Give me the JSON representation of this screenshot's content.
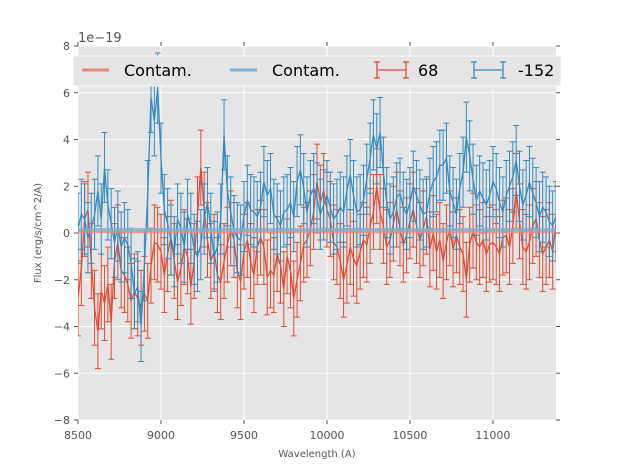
{
  "chart_data": {
    "type": "line",
    "title": "",
    "xlabel": "Wavelength (A)",
    "ylabel": "Flux (erg/s/cm^2/A)",
    "offset_text": "1e−19",
    "xlim": [
      8500,
      11380
    ],
    "ylim": [
      -8,
      8
    ],
    "y_scale_factor": 1e-19,
    "grid": true,
    "x_ticks": [
      8500,
      9000,
      9500,
      10000,
      10500,
      11000
    ],
    "x_tick_labels": [
      "8500",
      "9000",
      "9500",
      "10000",
      "10500",
      "11000"
    ],
    "y_ticks": [
      -8,
      -6,
      -4,
      -2,
      0,
      2,
      4,
      6,
      8
    ],
    "y_tick_labels": [
      "−8",
      "−6",
      "−4",
      "−2",
      "0",
      "2",
      "4",
      "6",
      "8"
    ],
    "legend": {
      "placement": "top (spanning, 4 columns)",
      "entries": [
        {
          "label": "Contam.",
          "type": "line",
          "color": "#E8877A"
        },
        {
          "label": "Contam.",
          "type": "line",
          "color": "#7BAFD4"
        },
        {
          "label": "68",
          "type": "errorbar",
          "color": "#E24A33"
        },
        {
          "label": "-152",
          "type": "errorbar",
          "color": "#348ABD"
        }
      ]
    },
    "x_start": 8500,
    "x_step": 20,
    "series": [
      {
        "name": "Contam. (68)",
        "kind": "line",
        "color": "#E8877A",
        "constant_value": 0.05
      },
      {
        "name": "Contam. (-152)",
        "kind": "line",
        "color": "#7BAFD4",
        "constant_value": 0.15
      },
      {
        "name": "68",
        "kind": "errorbar",
        "color": "#E24A33",
        "error": 1.6,
        "values": [
          -2.8,
          -1.5,
          0.6,
          1.0,
          -1.2,
          -3.2,
          -4.2,
          -2.5,
          -3.0,
          -2.2,
          -3.8,
          -1.2,
          -0.4,
          -1.6,
          -1.8,
          -2.2,
          -2.9,
          -2.5,
          -2.8,
          -3.2,
          -2.6,
          -2.9,
          -1.4,
          -0.4,
          -0.5,
          -0.8,
          -1.8,
          -0.9,
          -0.2,
          -1.2,
          -2.1,
          -1.5,
          -0.6,
          -1.0,
          -2.3,
          -1.2,
          0.8,
          2.8,
          1.0,
          -0.3,
          -1.2,
          -0.8,
          -1.8,
          -2.1,
          -1.2,
          -0.5,
          0.2,
          -0.3,
          -1.6,
          -2.1,
          -0.8,
          -0.3,
          -1.2,
          -1.8,
          -0.6,
          -0.2,
          -0.6,
          -1.9,
          -1.6,
          -1.8,
          -0.9,
          -1.4,
          -2.4,
          -1.0,
          -1.6,
          -2.8,
          -2.0,
          -1.3,
          -0.5,
          -0.3,
          0.2,
          0.9,
          2.2,
          1.3,
          1.8,
          1.0,
          0.6,
          -0.4,
          -0.6,
          -1.2,
          -2.0,
          -1.4,
          -0.6,
          -1.1,
          -1.4,
          -0.8,
          -0.3,
          -0.5,
          0.3,
          0.9,
          2.0,
          0.9,
          0.3,
          -0.6,
          -0.3,
          0.4,
          1.0,
          0.2,
          -0.5,
          -0.1,
          0.5,
          1.0,
          0.3,
          -0.3,
          0.2,
          0.7,
          -0.7,
          0.0,
          -0.8,
          -0.3,
          -1.2,
          -0.4,
          0.2,
          -0.7,
          -0.1,
          -0.6,
          -0.9,
          -2.0,
          -0.5,
          0.1,
          -0.4,
          -0.6,
          -0.3,
          -0.9,
          -0.5,
          -0.4,
          -0.6,
          -0.9,
          -0.2,
          -0.1,
          -0.6,
          0.3,
          1.8,
          0.5,
          -0.6,
          -0.8,
          -0.4,
          0.3,
          0.6,
          -0.3,
          -0.9,
          -0.6,
          -0.3,
          -0.8,
          0.4,
          1.3,
          -0.3,
          -0.6,
          -1.1,
          -1.7,
          -0.6,
          -0.1
        ]
      },
      {
        "name": "-152",
        "kind": "errorbar",
        "color": "#348ABD",
        "error": 1.5,
        "values": [
          0.2,
          0.8,
          0.6,
          -0.2,
          0.2,
          0.8,
          1.8,
          0.6,
          2.8,
          1.2,
          0.4,
          -0.4,
          0.3,
          -0.6,
          -0.2,
          -0.5,
          -1.3,
          -2.6,
          -2.3,
          -4.0,
          -1.4,
          1.6,
          5.8,
          4.8,
          6.2,
          3.2,
          1.0,
          0.4,
          -0.3,
          -0.8,
          0.6,
          0.2,
          -0.6,
          0.8,
          0.2,
          -0.7,
          -1.0,
          -0.5,
          0.6,
          1.3,
          0.2,
          -1.0,
          -0.6,
          0.6,
          4.2,
          1.8,
          0.9,
          0.1,
          -0.2,
          -0.3,
          0.7,
          1.4,
          1.0,
          0.9,
          0.7,
          1.1,
          2.2,
          1.6,
          1.9,
          0.8,
          0.6,
          0.3,
          0.9,
          1.0,
          1.3,
          0.7,
          2.2,
          2.7,
          1.9,
          0.9,
          1.6,
          1.9,
          1.5,
          0.8,
          1.2,
          1.6,
          1.1,
          0.6,
          0.8,
          1.1,
          0.9,
          1.8,
          2.5,
          1.6,
          0.9,
          1.0,
          1.4,
          2.3,
          3.2,
          4.2,
          3.6,
          4.3,
          2.6,
          1.3,
          0.6,
          0.9,
          1.5,
          1.7,
          1.1,
          0.8,
          1.3,
          2.0,
          1.6,
          1.2,
          0.8,
          0.9,
          1.7,
          2.2,
          2.4,
          2.9,
          2.9,
          3.2,
          1.8,
          1.3,
          0.8,
          1.9,
          2.6,
          4.1,
          3.3,
          2.3,
          1.4,
          1.8,
          1.5,
          1.2,
          1.6,
          2.2,
          1.9,
          1.3,
          0.9,
          1.6,
          2.0,
          2.4,
          3.1,
          2.0,
          1.2,
          1.6,
          2.2,
          1.7,
          1.3,
          0.7,
          1.1,
          0.9,
          0.5,
          0.3,
          0.7,
          1.6,
          2.4,
          1.5,
          1.0,
          0.8
        ]
      }
    ]
  }
}
